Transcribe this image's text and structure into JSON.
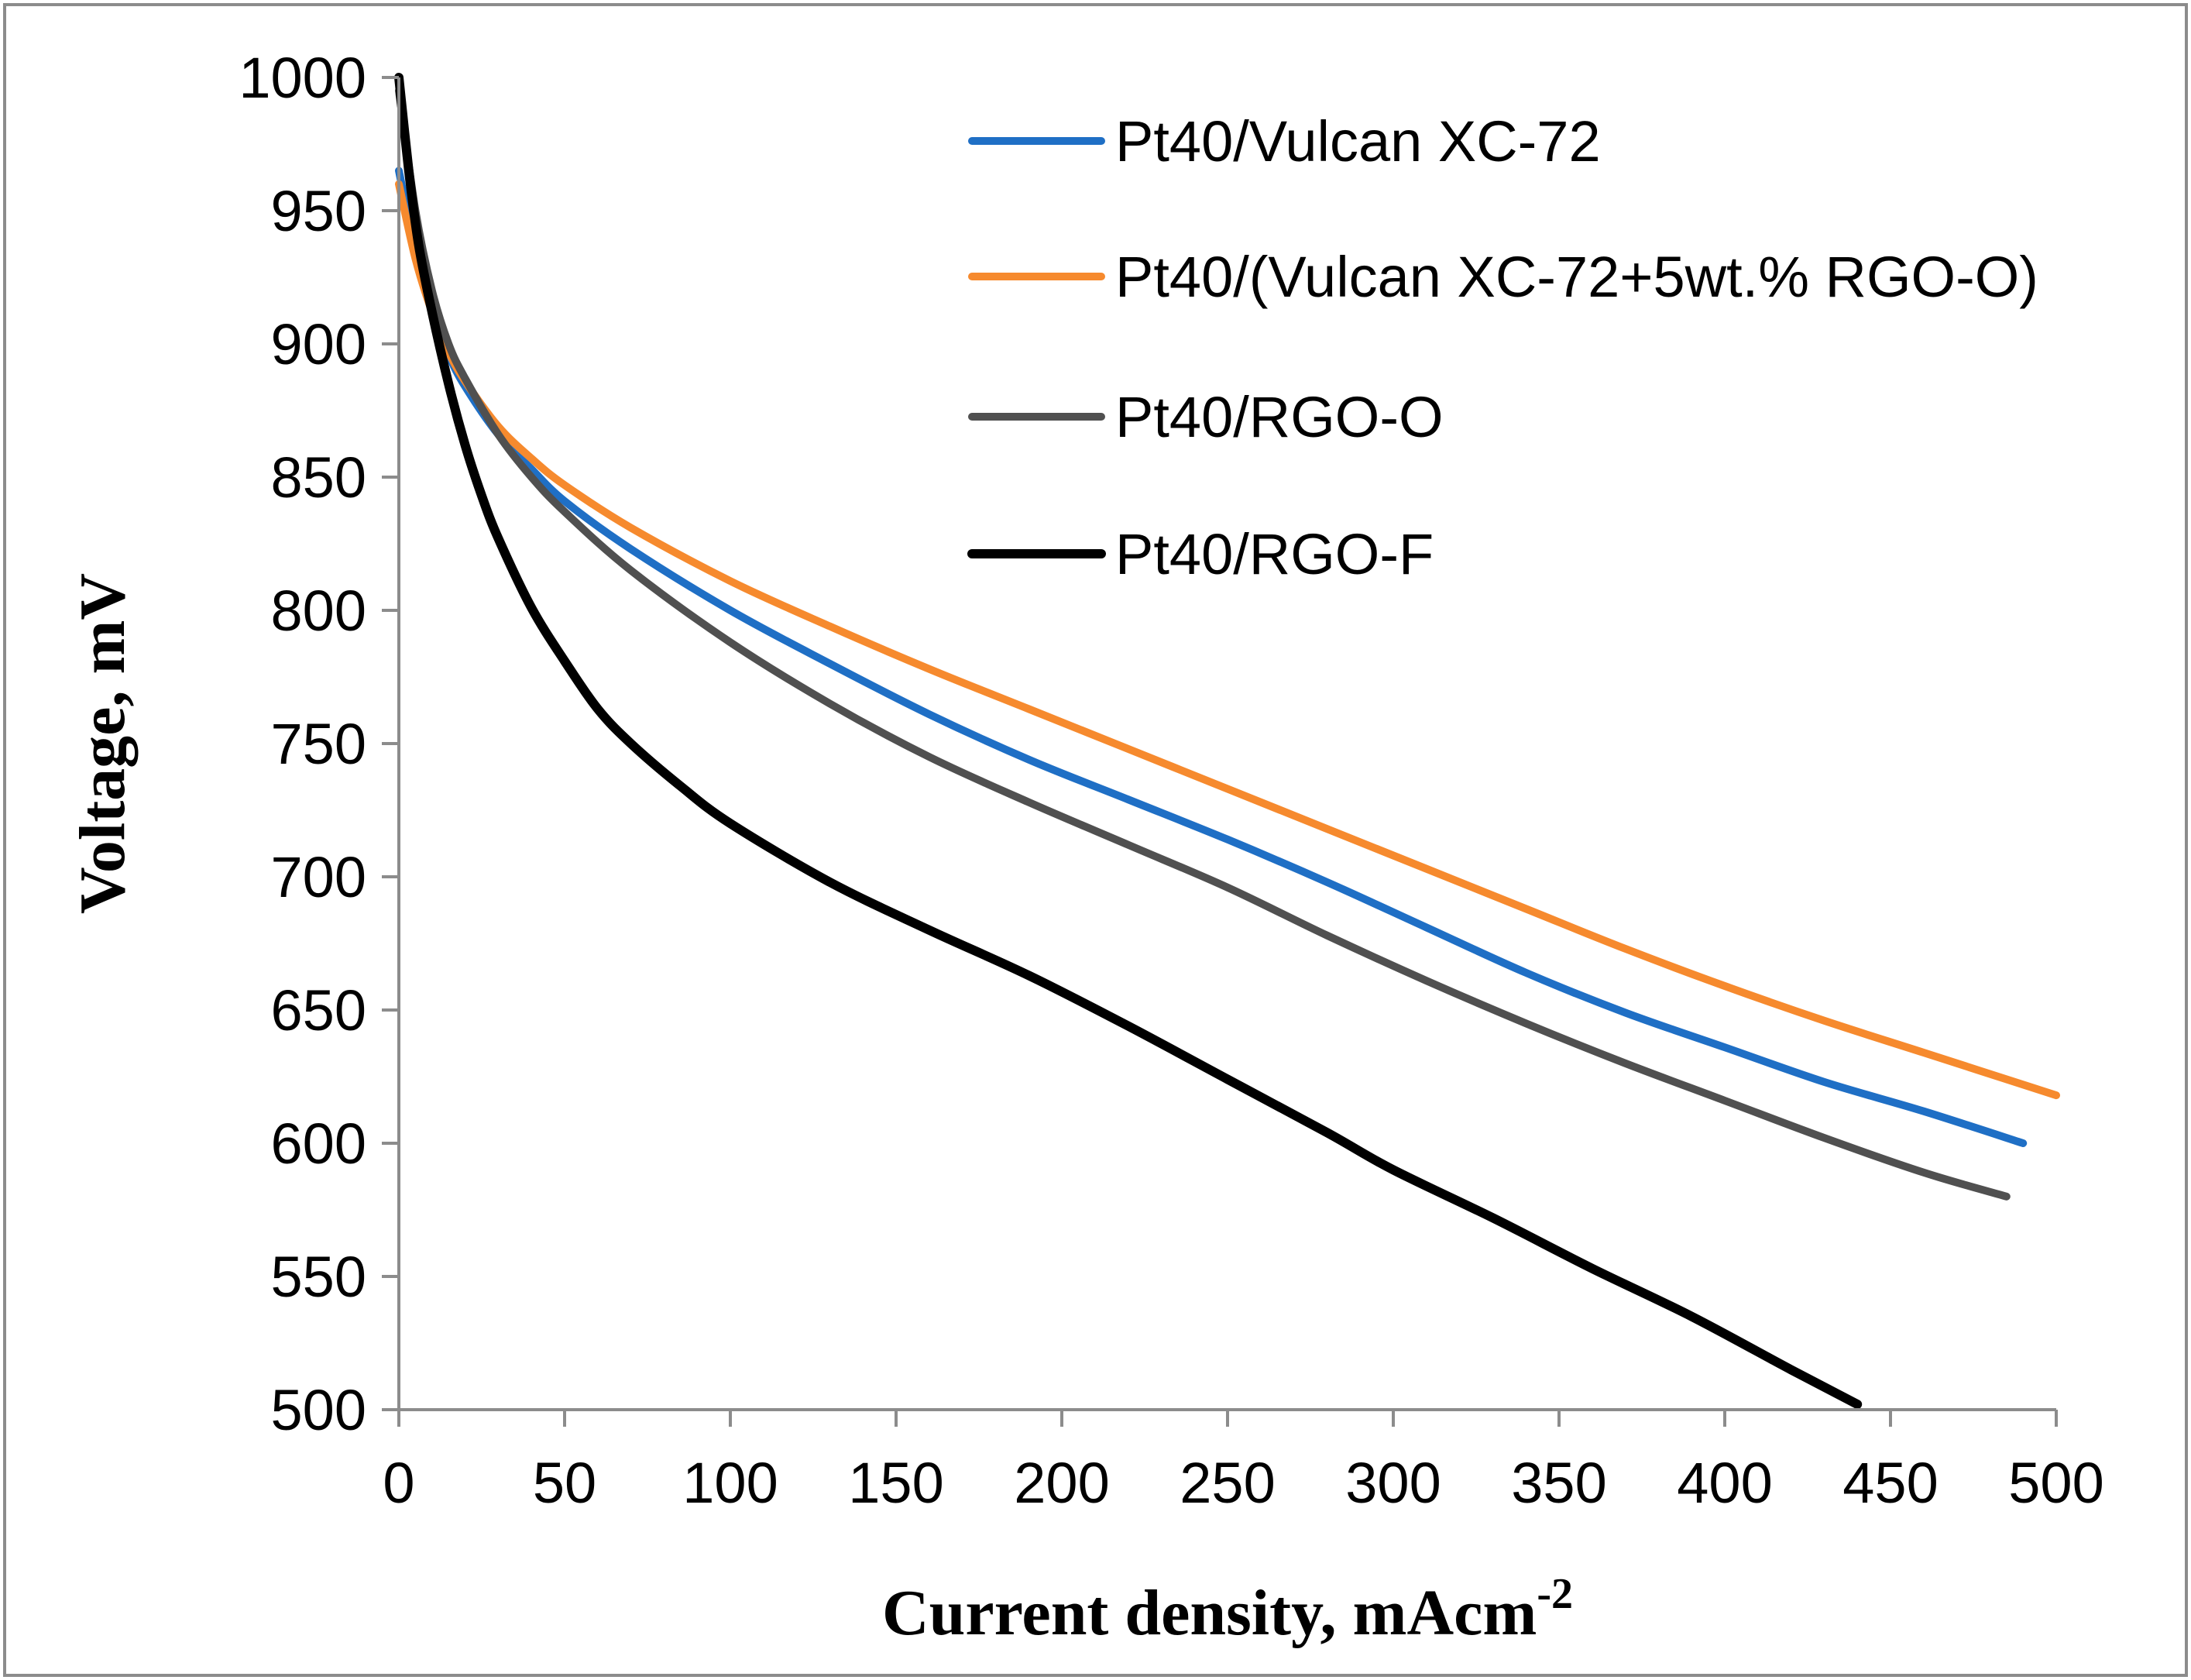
{
  "chart_data": {
    "type": "line",
    "xlabel": "Current density, mAcm",
    "xlabel_superscript": "-2",
    "ylabel": "Voltage, mV",
    "xlim": [
      0,
      500
    ],
    "ylim": [
      500,
      1000
    ],
    "xticks": [
      0,
      50,
      100,
      150,
      200,
      250,
      300,
      350,
      400,
      450,
      500
    ],
    "yticks": [
      500,
      550,
      600,
      650,
      700,
      750,
      800,
      850,
      900,
      950,
      1000
    ],
    "xtick_labels": [
      "0",
      "50",
      "100",
      "150",
      "200",
      "250",
      "300",
      "350",
      "400",
      "450",
      "500"
    ],
    "ytick_labels": [
      "500",
      "550",
      "600",
      "650",
      "700",
      "750",
      "800",
      "850",
      "900",
      "950",
      "1000"
    ],
    "grid": false,
    "legend_position": "top-right",
    "series": [
      {
        "name": "Pt40/Vulcan XC-72",
        "color": "#1f6fc5",
        "x": [
          0,
          5,
          10,
          15,
          20,
          30,
          40,
          50,
          70,
          100,
          130,
          160,
          190,
          220,
          250,
          280,
          310,
          340,
          370,
          400,
          430,
          460,
          490
        ],
        "y": [
          965,
          935,
          912,
          896,
          884,
          866,
          853,
          841,
          823,
          800,
          780,
          761,
          744,
          729,
          714,
          698,
          681,
          664,
          649,
          636,
          623,
          612,
          600
        ]
      },
      {
        "name": "Pt40/(Vulcan XC-72+5wt.% RGO-O)",
        "color": "#f68a2e",
        "x": [
          0,
          5,
          10,
          15,
          20,
          30,
          40,
          50,
          70,
          100,
          130,
          160,
          190,
          220,
          250,
          280,
          310,
          340,
          370,
          400,
          430,
          460,
          500
        ],
        "y": [
          960,
          932,
          912,
          897,
          886,
          869,
          857,
          847,
          831,
          811,
          794,
          778,
          763,
          748,
          733,
          718,
          703,
          688,
          673,
          659,
          646,
          634,
          618
        ]
      },
      {
        "name": "Pt40/RGO-O",
        "color": "#505050",
        "x": [
          0,
          5,
          10,
          15,
          20,
          30,
          40,
          50,
          70,
          100,
          130,
          160,
          190,
          220,
          250,
          280,
          310,
          340,
          370,
          400,
          430,
          460,
          485
        ],
        "y": [
          995,
          950,
          920,
          900,
          887,
          866,
          850,
          837,
          815,
          788,
          765,
          745,
          728,
          712,
          696,
          678,
          661,
          645,
          630,
          616,
          602,
          589,
          580
        ]
      },
      {
        "name": "Pt40/RGO-F",
        "color": "#000000",
        "x": [
          0,
          3,
          6,
          10,
          15,
          20,
          25,
          30,
          40,
          50,
          60,
          70,
          85,
          100,
          130,
          160,
          190,
          220,
          250,
          280,
          300,
          330,
          360,
          390,
          420,
          440
        ],
        "y": [
          1000,
          965,
          937,
          912,
          885,
          862,
          843,
          827,
          801,
          781,
          763,
          750,
          734,
          720,
          698,
          680,
          663,
          644,
          624,
          604,
          590,
          572,
          553,
          535,
          515,
          502
        ]
      }
    ]
  }
}
